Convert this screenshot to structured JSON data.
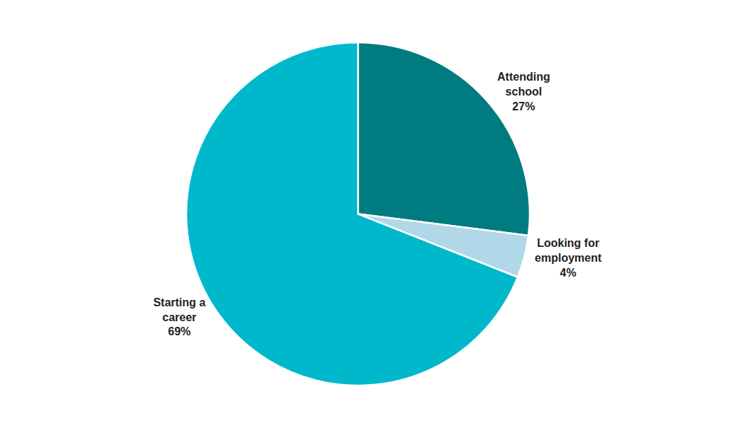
{
  "chart_data": {
    "type": "pie",
    "categories": [
      "Attending\nschool",
      "Looking for\nemployment",
      "Starting a\ncareer"
    ],
    "values": [
      27,
      4,
      69
    ],
    "value_labels": [
      "27%",
      "4%",
      "69%"
    ],
    "colors": [
      "#007B7F",
      "#B0D8E8",
      "#00B8CC"
    ],
    "data_labels": true
  }
}
